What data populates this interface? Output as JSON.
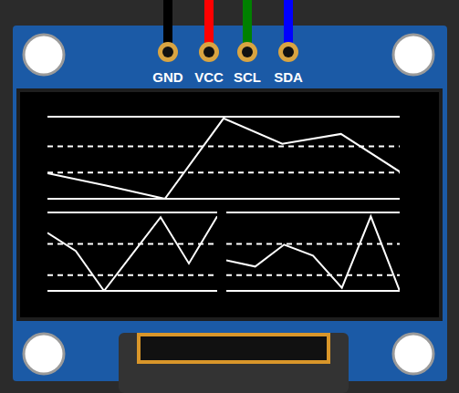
{
  "pins": [
    "GND",
    "VCC",
    "SCL",
    "SDA"
  ],
  "chart_data": [
    {
      "type": "line",
      "x": [
        0,
        1,
        2,
        3,
        4,
        5,
        6
      ],
      "xlim": [
        0,
        6
      ],
      "values": [
        31,
        16,
        0,
        98,
        67,
        79,
        33
      ],
      "ylim": [
        0,
        100
      ],
      "yticks": [
        0,
        32,
        64,
        100
      ],
      "color": "#ffffff",
      "grid": true,
      "tick_labels": false
    },
    {
      "type": "line",
      "x": [
        0,
        1,
        2,
        3,
        4,
        5,
        6
      ],
      "xlim": [
        0,
        6
      ],
      "values": [
        74,
        51,
        0,
        47,
        94,
        35,
        95
      ],
      "ylim": [
        0,
        100
      ],
      "yticks": [
        0,
        20,
        60,
        100
      ],
      "color": "#ffffff",
      "grid": true,
      "tick_labels": false
    },
    {
      "type": "line",
      "x": [
        0,
        1,
        2,
        3,
        4,
        5,
        6
      ],
      "xlim": [
        0,
        6
      ],
      "values": [
        39,
        31,
        59,
        45,
        4,
        95,
        0
      ],
      "ylim": [
        0,
        100
      ],
      "yticks": [
        0,
        20,
        60,
        100
      ],
      "color": "#ffffff",
      "grid": true,
      "tick_labels": false
    }
  ]
}
